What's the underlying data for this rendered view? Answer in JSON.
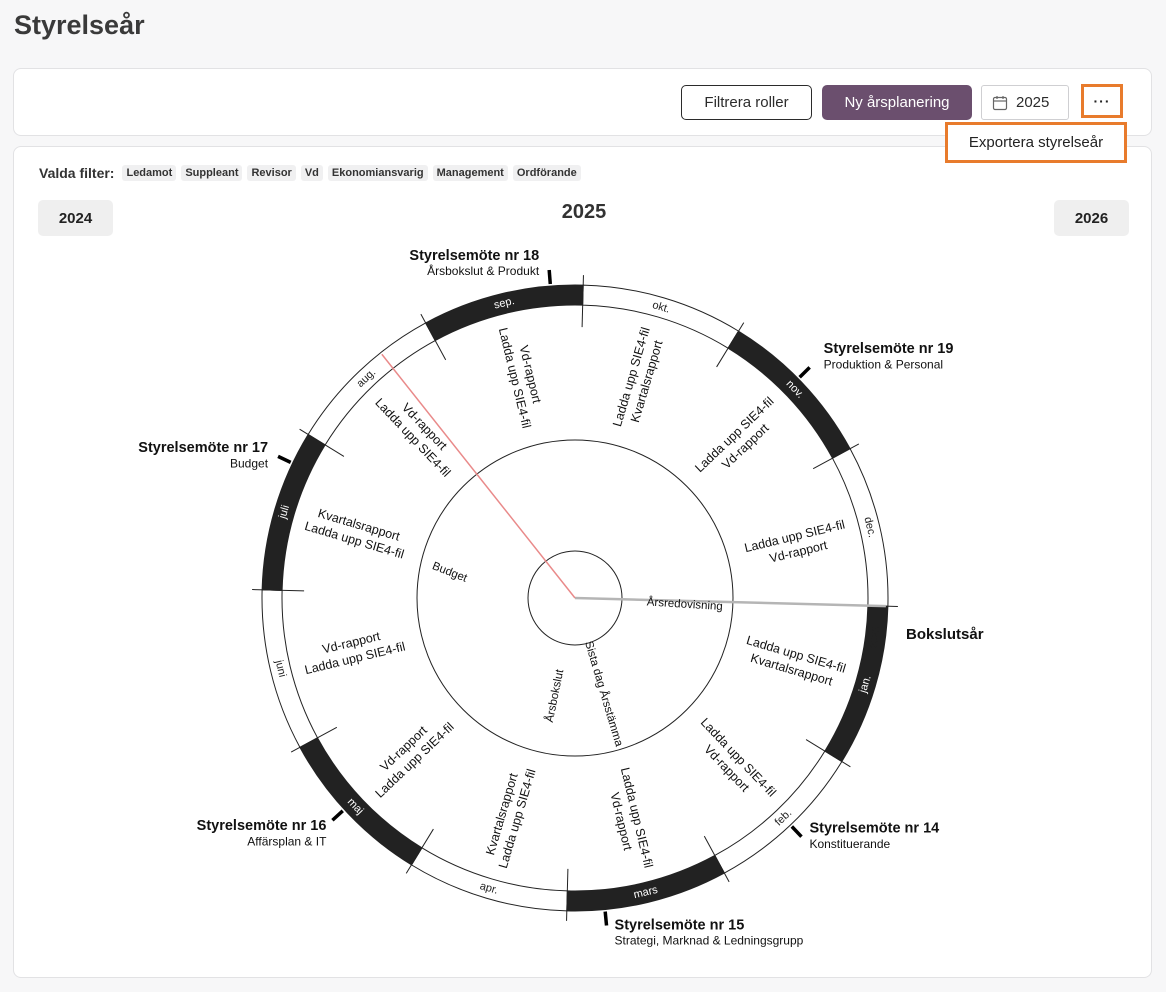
{
  "page": {
    "title": "Styrelseår"
  },
  "toolbar": {
    "filter_label": "Filtrera roller",
    "new_plan_label": "Ny årsplanering",
    "year_value": "2025",
    "more_label": "···",
    "dropdown_export": "Exportera styrelseår"
  },
  "filters": {
    "label": "Valda filter:",
    "chips": [
      "Ledamot",
      "Suppleant",
      "Revisor",
      "Vd",
      "Ekonomiansvarig",
      "Management",
      "Ordförande"
    ]
  },
  "nav": {
    "prev_year": "2024",
    "current_year": "2025",
    "next_year": "2026"
  },
  "wheel": {
    "year_marker": "2025",
    "bokslut_label": "Bokslutsår",
    "months": [
      {
        "label": "jan.",
        "dark": true
      },
      {
        "label": "feb.",
        "dark": false
      },
      {
        "label": "mars",
        "dark": true
      },
      {
        "label": "apr.",
        "dark": false
      },
      {
        "label": "maj",
        "dark": true
      },
      {
        "label": "juni",
        "dark": false
      },
      {
        "label": "juli",
        "dark": true
      },
      {
        "label": "aug.",
        "dark": false
      },
      {
        "label": "sep.",
        "dark": true
      },
      {
        "label": "okt.",
        "dark": false
      },
      {
        "label": "nov.",
        "dark": true
      },
      {
        "label": "dec.",
        "dark": false
      }
    ],
    "activities": [
      [
        "Ladda upp SIE4-fil",
        "Kvartalsrapport"
      ],
      [
        "Ladda upp SIE4-fil",
        "Vd-rapport"
      ],
      [
        "Ladda upp SIE4-fil",
        "Vd-rapport"
      ],
      [
        "Kvartalsrapport",
        "Ladda upp SIE4-fil"
      ],
      [
        "Vd-rapport",
        "Ladda upp SIE4-fil"
      ],
      [
        "Vd-rapport",
        "Ladda upp SIE4-fil"
      ],
      [
        "Kvartalsrapport",
        "Ladda upp SIE4-fil"
      ],
      [
        "Vd-rapport",
        "Ladda upp SIE4-fil"
      ],
      [
        "Vd-rapport",
        "Ladda upp SIE4-fil"
      ],
      [
        "Ladda upp SIE4-fil",
        "Kvartalsrapport"
      ],
      [
        "Ladda upp SIE4-fil",
        "Vd-rapport"
      ],
      [
        "Ladda upp SIE4-fil",
        "Vd-rapport"
      ]
    ],
    "inner_items": [
      "Årsredovisning",
      "Sista dag Årsstämma",
      "Årsbokslut",
      "Budget"
    ],
    "meetings": [
      {
        "title": "Styrelsemöte nr 14",
        "subtitle": "Konstituerande"
      },
      {
        "title": "Styrelsemöte nr 15",
        "subtitle": "Strategi, Marknad & Ledningsgrupp"
      },
      {
        "title": "Styrelsemöte nr 16",
        "subtitle": "Affärsplan & IT"
      },
      {
        "title": "Styrelsemöte nr 17",
        "subtitle": "Budget"
      },
      {
        "title": "Styrelsemöte nr 18",
        "subtitle": "Årsbokslut & Produkt"
      },
      {
        "title": "Styrelsemöte nr 19",
        "subtitle": "Produktion & Personal"
      }
    ],
    "colors": {
      "dark": "#222222",
      "today_line": "#e98a8a",
      "year_line": "#b5b5b5"
    }
  }
}
